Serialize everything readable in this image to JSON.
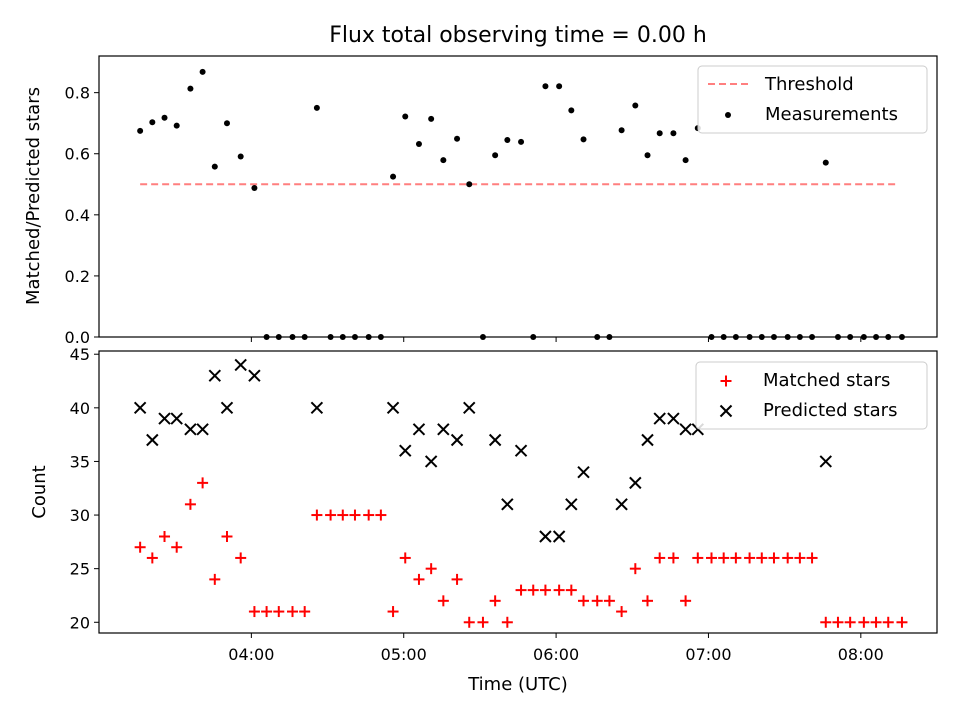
{
  "chart_data": [
    {
      "type": "scatter",
      "title": "Flux total observing time = 0.00 h",
      "ylabel": "Matched/Predicted stars",
      "xlim_hours": [
        3.0,
        8.5
      ],
      "ylim": [
        0.0,
        0.92
      ],
      "yticks": [
        "0.0",
        "0.2",
        "0.4",
        "0.6",
        "0.8"
      ],
      "threshold": {
        "name": "Threshold",
        "value": 0.5,
        "x_range": [
          3.27,
          8.25
        ],
        "color": "#ff7f7f",
        "style": "dashed"
      },
      "series": [
        {
          "name": "Measurements",
          "color": "#000000",
          "marker": "dot",
          "points": [
            [
              3.27,
              0.675
            ],
            [
              3.35,
              0.703
            ],
            [
              3.43,
              0.718
            ],
            [
              3.51,
              0.692
            ],
            [
              3.6,
              0.813
            ],
            [
              3.68,
              0.868
            ],
            [
              3.76,
              0.558
            ],
            [
              3.84,
              0.7
            ],
            [
              3.93,
              0.591
            ],
            [
              4.02,
              0.488
            ],
            [
              4.1,
              0.0
            ],
            [
              4.18,
              0.0
            ],
            [
              4.27,
              0.0
            ],
            [
              4.35,
              0.0
            ],
            [
              4.43,
              0.75
            ],
            [
              4.52,
              0.0
            ],
            [
              4.6,
              0.0
            ],
            [
              4.68,
              0.0
            ],
            [
              4.77,
              0.0
            ],
            [
              4.85,
              0.0
            ],
            [
              4.93,
              0.525
            ],
            [
              5.01,
              0.722
            ],
            [
              5.1,
              0.632
            ],
            [
              5.18,
              0.714
            ],
            [
              5.26,
              0.579
            ],
            [
              5.35,
              0.649
            ],
            [
              5.43,
              0.5
            ],
            [
              5.52,
              0.0
            ],
            [
              5.6,
              0.595
            ],
            [
              5.68,
              0.645
            ],
            [
              5.77,
              0.639
            ],
            [
              5.85,
              0.0
            ],
            [
              5.93,
              0.821
            ],
            [
              6.02,
              0.821
            ],
            [
              6.1,
              0.742
            ],
            [
              6.18,
              0.647
            ],
            [
              6.27,
              0.0
            ],
            [
              6.35,
              0.0
            ],
            [
              6.43,
              0.677
            ],
            [
              6.52,
              0.758
            ],
            [
              6.6,
              0.595
            ],
            [
              6.68,
              0.667
            ],
            [
              6.77,
              0.667
            ],
            [
              6.85,
              0.579
            ],
            [
              6.93,
              0.684
            ],
            [
              7.02,
              0.0
            ],
            [
              7.1,
              0.0
            ],
            [
              7.18,
              0.0
            ],
            [
              7.27,
              0.0
            ],
            [
              7.35,
              0.0
            ],
            [
              7.43,
              0.0
            ],
            [
              7.52,
              0.0
            ],
            [
              7.6,
              0.0
            ],
            [
              7.68,
              0.0
            ],
            [
              7.77,
              0.571
            ],
            [
              7.85,
              0.0
            ],
            [
              7.93,
              0.0
            ],
            [
              8.02,
              0.0
            ],
            [
              8.1,
              0.0
            ],
            [
              8.18,
              0.0
            ],
            [
              8.27,
              0.0
            ]
          ]
        }
      ],
      "legend": "top-right"
    },
    {
      "type": "scatter",
      "xlabel": "Time (UTC)",
      "ylabel": "Count",
      "xlim_hours": [
        3.0,
        8.5
      ],
      "ylim": [
        19,
        45.3
      ],
      "xticks": [
        "04:00",
        "05:00",
        "06:00",
        "07:00",
        "08:00"
      ],
      "yticks": [
        "20",
        "25",
        "30",
        "35",
        "40",
        "45"
      ],
      "series": [
        {
          "name": "Matched stars",
          "color": "#ff0000",
          "marker": "plus",
          "points": [
            [
              3.27,
              27
            ],
            [
              3.35,
              26
            ],
            [
              3.43,
              28
            ],
            [
              3.51,
              27
            ],
            [
              3.6,
              31
            ],
            [
              3.68,
              33
            ],
            [
              3.76,
              24
            ],
            [
              3.84,
              28
            ],
            [
              3.93,
              26
            ],
            [
              4.02,
              21
            ],
            [
              4.1,
              21
            ],
            [
              4.18,
              21
            ],
            [
              4.27,
              21
            ],
            [
              4.35,
              21
            ],
            [
              4.43,
              30
            ],
            [
              4.52,
              30
            ],
            [
              4.6,
              30
            ],
            [
              4.68,
              30
            ],
            [
              4.77,
              30
            ],
            [
              4.85,
              30
            ],
            [
              4.93,
              21
            ],
            [
              5.01,
              26
            ],
            [
              5.1,
              24
            ],
            [
              5.18,
              25
            ],
            [
              5.26,
              22
            ],
            [
              5.35,
              24
            ],
            [
              5.43,
              20
            ],
            [
              5.52,
              20
            ],
            [
              5.6,
              22
            ],
            [
              5.68,
              20
            ],
            [
              5.77,
              23
            ],
            [
              5.85,
              23
            ],
            [
              5.93,
              23
            ],
            [
              6.02,
              23
            ],
            [
              6.1,
              23
            ],
            [
              6.18,
              22
            ],
            [
              6.27,
              22
            ],
            [
              6.35,
              22
            ],
            [
              6.43,
              21
            ],
            [
              6.52,
              25
            ],
            [
              6.6,
              22
            ],
            [
              6.68,
              26
            ],
            [
              6.77,
              26
            ],
            [
              6.85,
              22
            ],
            [
              6.93,
              26
            ],
            [
              7.02,
              26
            ],
            [
              7.1,
              26
            ],
            [
              7.18,
              26
            ],
            [
              7.27,
              26
            ],
            [
              7.35,
              26
            ],
            [
              7.43,
              26
            ],
            [
              7.52,
              26
            ],
            [
              7.6,
              26
            ],
            [
              7.68,
              26
            ],
            [
              7.77,
              20
            ],
            [
              7.85,
              20
            ],
            [
              7.93,
              20
            ],
            [
              8.02,
              20
            ],
            [
              8.1,
              20
            ],
            [
              8.18,
              20
            ],
            [
              8.27,
              20
            ]
          ]
        },
        {
          "name": "Predicted stars",
          "color": "#000000",
          "marker": "x",
          "points": [
            [
              3.27,
              40
            ],
            [
              3.35,
              37
            ],
            [
              3.43,
              39
            ],
            [
              3.51,
              39
            ],
            [
              3.6,
              38
            ],
            [
              3.68,
              38
            ],
            [
              3.76,
              43
            ],
            [
              3.84,
              40
            ],
            [
              3.93,
              44
            ],
            [
              4.02,
              43
            ],
            [
              4.43,
              40
            ],
            [
              4.93,
              40
            ],
            [
              5.01,
              36
            ],
            [
              5.1,
              38
            ],
            [
              5.18,
              35
            ],
            [
              5.26,
              38
            ],
            [
              5.35,
              37
            ],
            [
              5.43,
              40
            ],
            [
              5.6,
              37
            ],
            [
              5.68,
              31
            ],
            [
              5.77,
              36
            ],
            [
              5.93,
              28
            ],
            [
              6.02,
              28
            ],
            [
              6.1,
              31
            ],
            [
              6.18,
              34
            ],
            [
              6.43,
              31
            ],
            [
              6.52,
              33
            ],
            [
              6.6,
              37
            ],
            [
              6.68,
              39
            ],
            [
              6.77,
              39
            ],
            [
              6.85,
              38
            ],
            [
              6.93,
              38
            ],
            [
              7.77,
              35
            ]
          ]
        }
      ],
      "legend": "top-right"
    }
  ]
}
